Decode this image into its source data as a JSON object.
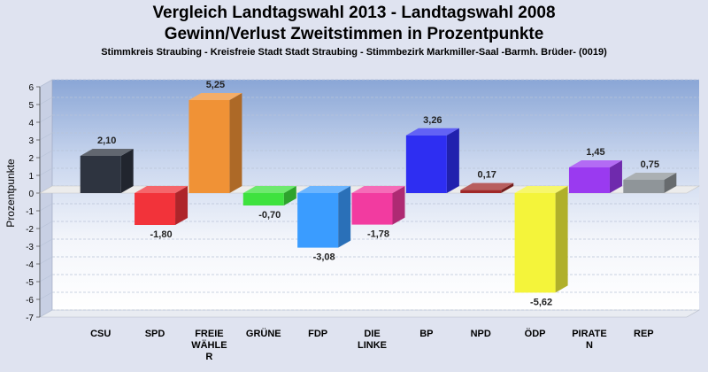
{
  "chart_data": {
    "type": "bar",
    "title": "Vergleich Landtagswahl 2013 - Landtagswahl 2008",
    "subtitle": "Gewinn/Verlust Zweitstimmen in Prozentpunkte",
    "caption": "Stimmkreis Straubing - Kreisfreie Stadt Stadt Straubing - Stimmbezirk Markmiller-Saal -Barmh. Brüder- (0019)",
    "xlabel": "",
    "ylabel": "Prozentpunkte",
    "ylim": [
      -7,
      6
    ],
    "yticks": [
      "6",
      "5",
      "4",
      "3",
      "2",
      "1",
      "0",
      "-1",
      "-2",
      "-3",
      "-4",
      "-5",
      "-6",
      "-7"
    ],
    "grid": true,
    "legend": "none",
    "categories": [
      "CSU",
      "SPD",
      "FREIE WÄHLER",
      "GRÜNE",
      "FDP",
      "DIE LINKE",
      "BP",
      "NPD",
      "ÖDP",
      "PIRATEN",
      "REP"
    ],
    "category_lines": [
      [
        "CSU"
      ],
      [
        "SPD"
      ],
      [
        "FREIE",
        "WÄHLE",
        "R"
      ],
      [
        "GRÜNE"
      ],
      [
        "FDP"
      ],
      [
        "DIE",
        "LINKE"
      ],
      [
        "BP"
      ],
      [
        "NPD"
      ],
      [
        "ÖDP"
      ],
      [
        "PIRATE",
        "N"
      ],
      [
        "REP"
      ]
    ],
    "values": [
      2.1,
      -1.8,
      5.25,
      -0.7,
      -3.08,
      -1.78,
      3.26,
      0.17,
      -5.62,
      1.45,
      0.75
    ],
    "value_labels": [
      "2,10",
      "-1,80",
      "5,25",
      "-0,70",
      "-3,08",
      "-1,78",
      "3,26",
      "0,17",
      "-5,62",
      "1,45",
      "0,75"
    ],
    "colors": [
      "#2e3440",
      "#f2333a",
      "#f09236",
      "#3ee23e",
      "#3a9cff",
      "#f23ba0",
      "#2e2ef2",
      "#a02828",
      "#f4f43a",
      "#9a3af0",
      "#8f9599"
    ]
  }
}
